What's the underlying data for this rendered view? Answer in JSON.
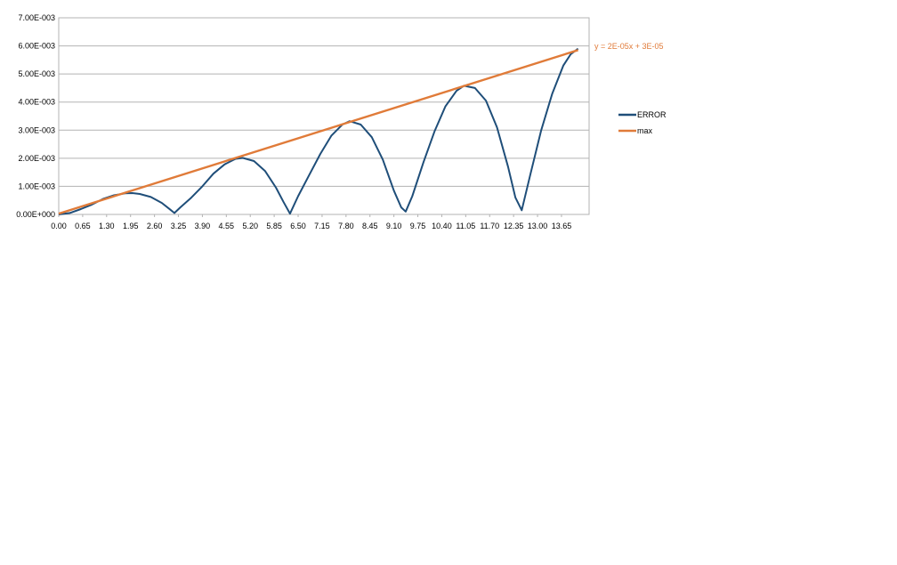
{
  "chart_data": {
    "type": "line",
    "x_ticks": [
      "0.00",
      "0.65",
      "1.30",
      "1.95",
      "2.60",
      "3.25",
      "3.90",
      "4.55",
      "5.20",
      "5.85",
      "6.50",
      "7.15",
      "7.80",
      "8.45",
      "9.10",
      "9.75",
      "10.40",
      "11.05",
      "11.70",
      "12.35",
      "13.00",
      "13.65"
    ],
    "y_ticks": [
      "0.00E+000",
      "1.00E-003",
      "2.00E-003",
      "3.00E-003",
      "4.00E-003",
      "5.00E-003",
      "6.00E-003",
      "7.00E-003"
    ],
    "xlim": [
      0,
      14.4
    ],
    "ylim": [
      0,
      0.007
    ],
    "grid": true,
    "legend_placement": "right",
    "series": [
      {
        "name": "ERROR",
        "color": "#1f4e79",
        "x": [
          0.0,
          0.3,
          0.6,
          0.9,
          1.2,
          1.5,
          1.8,
          2.0,
          2.2,
          2.5,
          2.8,
          3.0,
          3.14,
          3.3,
          3.6,
          3.9,
          4.2,
          4.5,
          4.8,
          5.0,
          5.3,
          5.6,
          5.9,
          6.1,
          6.28,
          6.5,
          6.8,
          7.1,
          7.4,
          7.7,
          7.9,
          8.2,
          8.5,
          8.8,
          9.1,
          9.3,
          9.42,
          9.6,
          9.9,
          10.2,
          10.5,
          10.8,
          11.0,
          11.3,
          11.6,
          11.9,
          12.2,
          12.4,
          12.57,
          12.8,
          13.1,
          13.4,
          13.7,
          13.9,
          14.1
        ],
        "y": [
          0.0,
          5e-05,
          0.00019,
          0.00035,
          0.00055,
          0.00068,
          0.00075,
          0.00076,
          0.00073,
          0.00062,
          0.00041,
          0.0002,
          5e-05,
          0.00025,
          0.0006,
          0.001,
          0.00145,
          0.00178,
          0.00198,
          0.00201,
          0.0019,
          0.00155,
          0.00095,
          0.00045,
          3e-05,
          0.00065,
          0.0014,
          0.00215,
          0.0028,
          0.0032,
          0.00332,
          0.0032,
          0.00275,
          0.00195,
          0.00085,
          0.00025,
          0.0001,
          0.00065,
          0.00185,
          0.00295,
          0.00385,
          0.0044,
          0.00458,
          0.0045,
          0.00405,
          0.0031,
          0.0017,
          0.0006,
          0.00015,
          0.0014,
          0.003,
          0.0043,
          0.0053,
          0.0057,
          0.0059
        ]
      },
      {
        "name": "max",
        "color": "#e07b39",
        "x": [
          0.0,
          14.1
        ],
        "y": [
          3e-05,
          0.00585
        ]
      }
    ],
    "annotations": [
      {
        "text": "y = 2E-05x + 3E-05",
        "color": "#e07b39"
      }
    ]
  }
}
